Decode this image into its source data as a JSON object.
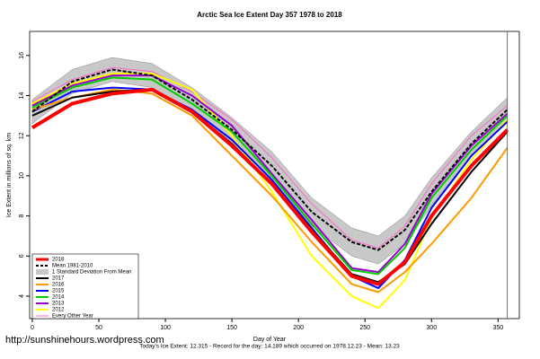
{
  "chart_data": {
    "type": "line",
    "title": "Arctic Sea Ice Extent Day 357 1978 to 2018",
    "x_label": "Day of Year",
    "y_label": "Ice Extent in millions of sq. km",
    "footer": "Today's Ice Extent: 12.315 - Record for the day: 14.189 which occurred on 1978.12.23 - Mean: 13.23",
    "watermark": "http://sunshinehours.wordpress.com",
    "xlim": [
      -2,
      366
    ],
    "ylim": [
      2.88,
      17.2
    ],
    "xticks": [
      0,
      50,
      100,
      150,
      200,
      250,
      300,
      350
    ],
    "yticks": [
      4,
      6,
      8,
      10,
      12,
      14,
      16
    ],
    "marker_day": 357,
    "x": [
      0,
      30,
      60,
      90,
      120,
      150,
      180,
      210,
      240,
      260,
      280,
      300,
      330,
      357
    ],
    "band": {
      "name": "1 Standard Deviation From Mean",
      "color": "#c8c8c8",
      "lower": [
        12.6,
        14.1,
        14.7,
        14.4,
        13.2,
        11.7,
        9.8,
        7.5,
        6.0,
        5.6,
        6.6,
        8.5,
        11.0,
        12.7
      ],
      "upper": [
        13.8,
        15.3,
        15.9,
        15.6,
        14.4,
        12.9,
        11.2,
        8.9,
        7.4,
        7.0,
        8.0,
        9.9,
        12.2,
        13.9
      ]
    },
    "series": [
      {
        "name": "Every Other Year",
        "color": "#ff66cc",
        "width": 1,
        "dash": false,
        "values": [
          13.7,
          14.8,
          15.4,
          15.2,
          14.2,
          12.8,
          10.9,
          8.6,
          6.8,
          6.4,
          7.5,
          9.6,
          12.0,
          13.5
        ]
      },
      {
        "name": "2012",
        "color": "#ffff00",
        "width": 2,
        "dash": false,
        "values": [
          13.6,
          14.6,
          15.1,
          15.1,
          14.3,
          12.0,
          9.2,
          6.0,
          4.0,
          3.4,
          4.8,
          7.9,
          10.8,
          12.8
        ]
      },
      {
        "name": "2013",
        "color": "#9900cc",
        "width": 2,
        "dash": false,
        "values": [
          13.5,
          14.5,
          15.0,
          15.0,
          14.0,
          12.5,
          10.1,
          7.8,
          5.4,
          5.2,
          6.6,
          9.1,
          11.5,
          13.1
        ]
      },
      {
        "name": "2014",
        "color": "#00cc00",
        "width": 2,
        "dash": false,
        "values": [
          13.4,
          14.4,
          14.9,
          14.8,
          13.6,
          12.2,
          10.0,
          7.6,
          5.3,
          5.1,
          6.4,
          8.9,
          11.3,
          13.0
        ]
      },
      {
        "name": "2015",
        "color": "#0000ff",
        "width": 2,
        "dash": false,
        "values": [
          13.2,
          14.2,
          14.4,
          14.3,
          13.3,
          11.8,
          9.8,
          7.4,
          5.0,
          4.4,
          5.8,
          8.4,
          11.0,
          12.7
        ]
      },
      {
        "name": "2016",
        "color": "#ff9900",
        "width": 2,
        "dash": false,
        "values": [
          13.3,
          13.9,
          14.3,
          14.1,
          13.0,
          11.0,
          9.0,
          6.7,
          4.6,
          4.2,
          5.2,
          6.6,
          8.9,
          11.4
        ]
      },
      {
        "name": "2017",
        "color": "#000000",
        "width": 2,
        "dash": false,
        "values": [
          13.0,
          13.9,
          14.2,
          14.3,
          13.2,
          11.6,
          9.6,
          7.3,
          5.1,
          4.7,
          5.6,
          7.6,
          10.2,
          12.2
        ]
      },
      {
        "name": "Mean 1981-2010",
        "color": "#000000",
        "width": 2,
        "dash": true,
        "values": [
          13.2,
          14.7,
          15.3,
          15.0,
          13.8,
          12.3,
          10.5,
          8.2,
          6.7,
          6.3,
          7.3,
          9.2,
          11.6,
          13.3
        ]
      },
      {
        "name": "2018",
        "color": "#ff0000",
        "width": 4,
        "dash": false,
        "values": [
          12.4,
          13.6,
          14.1,
          14.3,
          13.2,
          11.5,
          9.6,
          7.2,
          5.0,
          4.6,
          5.7,
          8.0,
          10.5,
          12.3
        ]
      }
    ],
    "legend_order": [
      8,
      7,
      "band",
      6,
      5,
      4,
      3,
      2,
      1,
      0
    ]
  }
}
